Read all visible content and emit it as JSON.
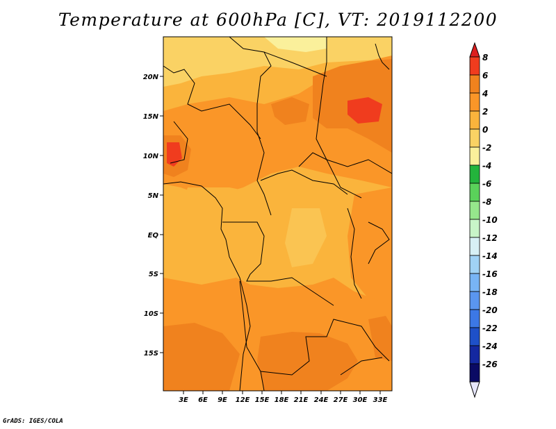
{
  "title": "Temperature at 600hPa [C], VT: 2019112200",
  "credit": "GrADS: IGES/COLA",
  "map": {
    "lat_labels": [
      "20N",
      "15N",
      "10N",
      "5N",
      "EQ",
      "5S",
      "10S",
      "15S"
    ],
    "lon_labels": [
      "3E",
      "6E",
      "9E",
      "12E",
      "15E",
      "18E",
      "21E",
      "24E",
      "27E",
      "30E",
      "33E"
    ]
  },
  "colorbar": {
    "labels": [
      "8",
      "6",
      "4",
      "2",
      "0",
      "-2",
      "-4",
      "-6",
      "-8",
      "-10",
      "-12",
      "-14",
      "-16",
      "-18",
      "-20",
      "-22",
      "-24",
      "-26"
    ],
    "colors": [
      "#dc1e1e",
      "#f03c1e",
      "#f0821e",
      "#fa9628",
      "#fab43c",
      "#fad264",
      "#faf09b",
      "#23b43c",
      "#5ad25a",
      "#96e68c",
      "#c8f5c8",
      "#d7f0f5",
      "#a0d2f5",
      "#78b4f5",
      "#5a96f0",
      "#3c78e6",
      "#1e50c8",
      "#1428a0",
      "#0a0a64",
      "#e6e6fa"
    ]
  }
}
